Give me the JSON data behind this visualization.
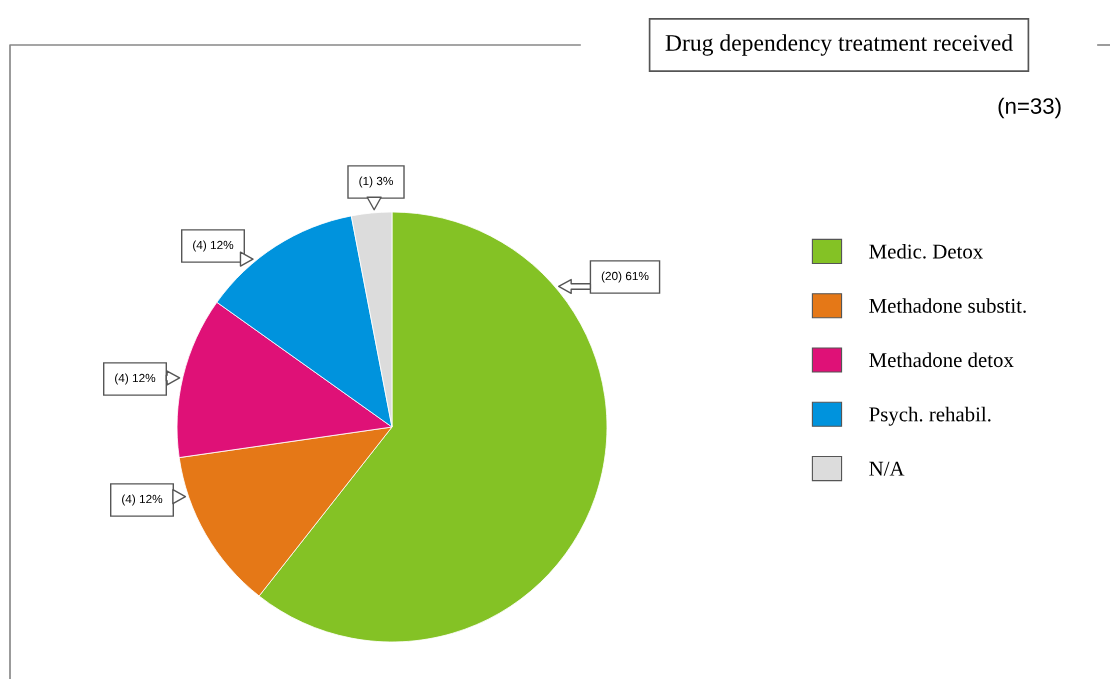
{
  "chart_data": {
    "type": "pie",
    "title": "Drug dependency treatment received",
    "annotations": [
      "(n=33)"
    ],
    "categories": [
      "Medic. Detox",
      "Methadone substit.",
      "Methadone detox",
      "Psych. rehabil.",
      "N/A"
    ],
    "values": [
      20,
      4,
      4,
      4,
      1
    ],
    "value_labels": [
      "(20) 61%",
      "(4) 12%",
      "(4) 12%",
      "(4) 12%",
      "(1) 3%"
    ],
    "colors": [
      "#84c225",
      "#e57817",
      "#df1177",
      "#0093dd",
      "#dcdcdc"
    ],
    "legend": "right"
  }
}
